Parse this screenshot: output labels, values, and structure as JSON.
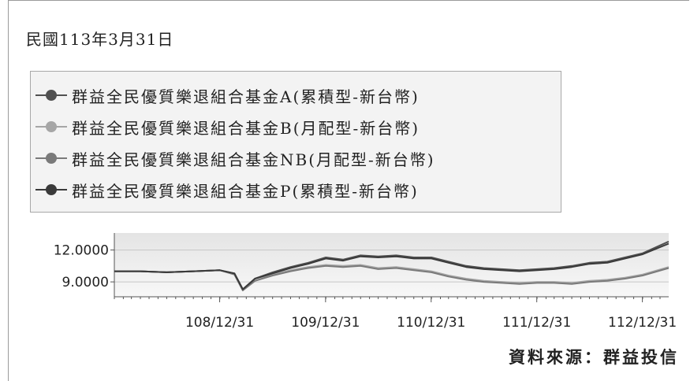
{
  "report_date": "民國113年3月31日",
  "source": "資料來源：群益投信",
  "chart_data": {
    "type": "line",
    "title": "",
    "xlabel": "",
    "ylabel": "",
    "legend_position": "top",
    "grid": true,
    "ylim": [
      7.6,
      13.6
    ],
    "xlim": [
      "2019-01-01",
      "2024-03-31"
    ],
    "y_ticks": [
      {
        "value": 12.0,
        "label": "12.0000"
      },
      {
        "value": 9.0,
        "label": "9.0000"
      }
    ],
    "x_ticks": [
      {
        "value": "2019-12-31",
        "label": "108/12/31"
      },
      {
        "value": "2020-12-31",
        "label": "109/12/31"
      },
      {
        "value": "2021-12-31",
        "label": "110/12/31"
      },
      {
        "value": "2022-12-31",
        "label": "111/12/31"
      },
      {
        "value": "2023-12-31",
        "label": "112/12/31"
      }
    ],
    "x": [
      "2019-01-01",
      "2019-04-01",
      "2019-07-01",
      "2019-10-01",
      "2020-01-01",
      "2020-02-20",
      "2020-03-20",
      "2020-05-01",
      "2020-07-01",
      "2020-09-01",
      "2020-11-01",
      "2021-01-01",
      "2021-03-01",
      "2021-05-01",
      "2021-07-01",
      "2021-09-01",
      "2021-11-01",
      "2022-01-01",
      "2022-03-01",
      "2022-05-01",
      "2022-07-01",
      "2022-09-01",
      "2022-11-01",
      "2023-01-01",
      "2023-03-01",
      "2023-05-01",
      "2023-07-01",
      "2023-09-01",
      "2023-11-01",
      "2024-01-01",
      "2024-03-31"
    ],
    "series": [
      {
        "name": "群益全民優質樂退組合基金A(累積型-新台幣)",
        "color": "#505050",
        "values": [
          10.0,
          10.0,
          9.9,
          10.0,
          10.1,
          9.8,
          8.3,
          9.3,
          9.9,
          10.4,
          10.8,
          11.3,
          11.1,
          11.5,
          11.4,
          11.5,
          11.3,
          11.3,
          10.9,
          10.5,
          10.3,
          10.2,
          10.1,
          10.2,
          10.3,
          10.5,
          10.8,
          10.9,
          11.3,
          11.7,
          12.8
        ]
      },
      {
        "name": "群益全民優質樂退組合基金B(月配型-新台幣)",
        "color": "#a6a6a6",
        "values": [
          10.0,
          10.0,
          9.9,
          10.0,
          10.1,
          9.7,
          8.2,
          9.1,
          9.7,
          10.1,
          10.4,
          10.6,
          10.5,
          10.6,
          10.3,
          10.4,
          10.2,
          10.0,
          9.6,
          9.3,
          9.1,
          9.0,
          8.9,
          9.0,
          9.0,
          8.9,
          9.1,
          9.2,
          9.4,
          9.7,
          10.4
        ]
      },
      {
        "name": "群益全民優質樂退組合基金NB(月配型-新台幣)",
        "color": "#7a7a7a",
        "values": [
          10.0,
          10.0,
          9.9,
          10.0,
          10.1,
          9.7,
          8.2,
          9.1,
          9.6,
          10.0,
          10.3,
          10.5,
          10.4,
          10.5,
          10.2,
          10.3,
          10.1,
          9.9,
          9.5,
          9.2,
          9.0,
          8.9,
          8.8,
          8.9,
          8.9,
          8.8,
          9.0,
          9.1,
          9.3,
          9.6,
          10.3
        ]
      },
      {
        "name": "群益全民優質樂退組合基金P(累積型-新台幣)",
        "color": "#3a3a3a",
        "values": [
          10.0,
          10.0,
          9.9,
          10.0,
          10.1,
          9.8,
          8.3,
          9.3,
          9.8,
          10.3,
          10.7,
          11.2,
          11.0,
          11.4,
          11.3,
          11.4,
          11.2,
          11.2,
          10.8,
          10.4,
          10.2,
          10.1,
          10.0,
          10.1,
          10.2,
          10.4,
          10.7,
          10.8,
          11.2,
          11.6,
          12.6
        ]
      }
    ]
  }
}
